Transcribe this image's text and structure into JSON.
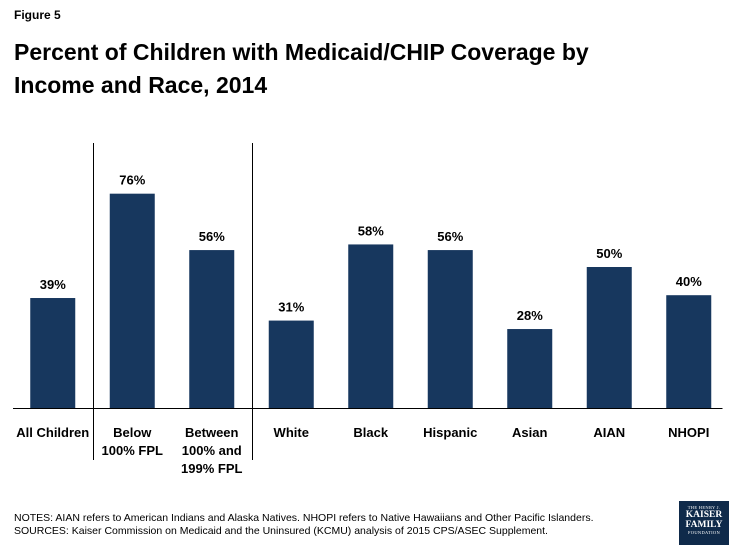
{
  "figure_label": "Figure 5",
  "title": "Percent of Children with Medicaid/CHIP Coverage by Income and Race, 2014",
  "chart_data": {
    "type": "bar",
    "title": "Percent of Children with Medicaid/CHIP Coverage by Income and Race, 2014",
    "xlabel": "",
    "ylabel": "",
    "ylim": [
      0,
      100
    ],
    "grid": false,
    "categories": [
      [
        "All Children"
      ],
      [
        "Below",
        "100% FPL"
      ],
      [
        "Between",
        "100% and",
        "199% FPL"
      ],
      [
        "White"
      ],
      [
        "Black"
      ],
      [
        "Hispanic"
      ],
      [
        "Asian"
      ],
      [
        "AIAN"
      ],
      [
        "NHOPI"
      ]
    ],
    "values": [
      39,
      76,
      56,
      31,
      58,
      56,
      28,
      50,
      40
    ],
    "data_labels": [
      "39%",
      "76%",
      "56%",
      "31%",
      "58%",
      "56%",
      "28%",
      "50%",
      "40%"
    ],
    "bar_color": "#17375e"
  },
  "notes": [
    "NOTES: AIAN refers to American Indians and Alaska Natives. NHOPI refers to Native Hawaiians and Other Pacific Islanders.",
    "SOURCES: Kaiser Commission on Medicaid and the Uninsured (KCMU) analysis of 2015 CPS/ASEC Supplement."
  ],
  "logo": {
    "line1": "THE HENRY J.",
    "line2": "KAISER",
    "line3": "FAMILY",
    "line4": "FOUNDATION"
  }
}
